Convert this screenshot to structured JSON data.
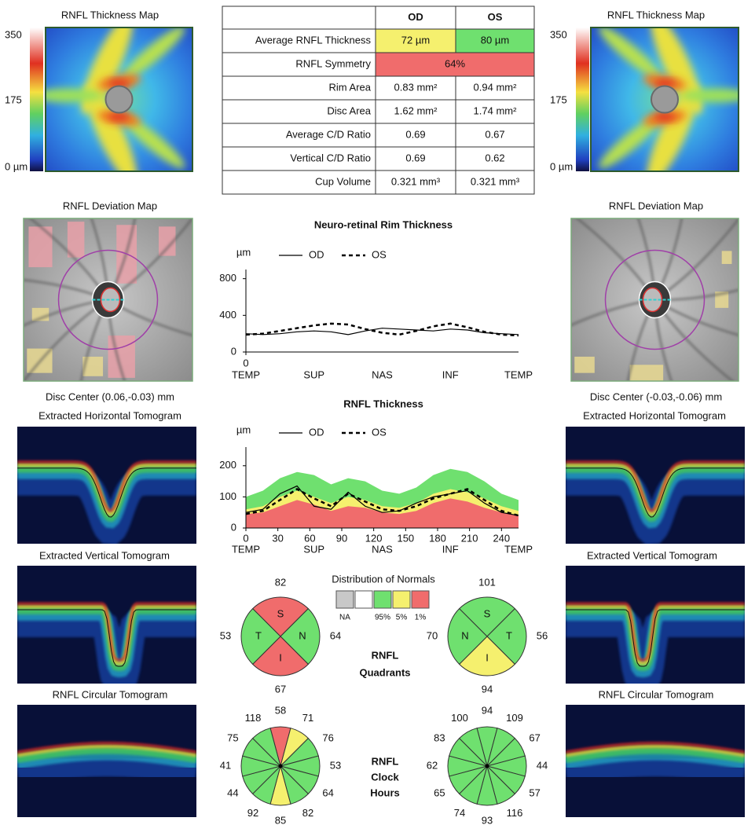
{
  "od": {
    "thickness_map": {
      "title": "RNFL Thickness Map",
      "scale_labels": [
        "350",
        "175",
        "0 µm"
      ]
    },
    "deviation_map": {
      "title": "RNFL Deviation Map",
      "disc_center": "Disc Center  (0.06,-0.03) mm"
    },
    "horizontal_tomogram": {
      "title": "Extracted Horizontal Tomogram"
    },
    "vertical_tomogram": {
      "title": "Extracted Vertical Tomogram"
    },
    "circular_tomogram": {
      "title": "RNFL Circular Tomogram"
    }
  },
  "os": {
    "thickness_map": {
      "title": "RNFL Thickness Map",
      "scale_labels": [
        "350",
        "175",
        "0 µm"
      ]
    },
    "deviation_map": {
      "title": "RNFL Deviation Map",
      "disc_center": "Disc Center  (-0.03,-0.06) mm"
    },
    "horizontal_tomogram": {
      "title": "Extracted Horizontal Tomogram"
    },
    "vertical_tomogram": {
      "title": "Extracted Vertical Tomogram"
    },
    "circular_tomogram": {
      "title": "RNFL Circular Tomogram"
    }
  },
  "table": {
    "columns": [
      "OD",
      "OS"
    ],
    "rows": [
      {
        "label": "Average RNFL Thickness",
        "cells": [
          "72 µm",
          "80 µm"
        ],
        "colors": [
          "#f5f06e",
          "#6fe06f"
        ]
      },
      {
        "label": "RNFL Symmetry",
        "cells": [
          "64%"
        ],
        "colors": [
          "#f06c6c"
        ]
      },
      {
        "label": "Rim Area",
        "cells": [
          "0.83 mm²",
          "0.94 mm²"
        ]
      },
      {
        "label": "Disc Area",
        "cells": [
          "1.62 mm²",
          "1.74 mm²"
        ]
      },
      {
        "label": "Average C/D Ratio",
        "cells": [
          "0.69",
          "0.67"
        ]
      },
      {
        "label": "Vertical C/D Ratio",
        "cells": [
          "0.69",
          "0.62"
        ]
      },
      {
        "label": "Cup Volume",
        "cells": [
          "0.321 mm³",
          "0.321 mm³"
        ]
      }
    ]
  },
  "chart_data": [
    {
      "type": "line",
      "title": "Neuro-retinal Rim Thickness",
      "y_unit": "µm",
      "x": [
        0,
        16,
        32,
        48,
        64,
        80,
        96,
        112,
        128,
        144,
        160,
        176,
        192,
        208,
        224,
        240,
        256
      ],
      "series": [
        {
          "name": "OD",
          "color": "#000000",
          "dash": "solid",
          "values": [
            200,
            190,
            200,
            220,
            230,
            220,
            190,
            230,
            260,
            250,
            240,
            230,
            250,
            240,
            210,
            200,
            190
          ]
        },
        {
          "name": "OS",
          "color": "#000000",
          "dash": "dashed",
          "values": [
            190,
            200,
            230,
            260,
            290,
            310,
            300,
            250,
            210,
            190,
            230,
            280,
            310,
            270,
            220,
            190,
            180
          ]
        }
      ],
      "xlim": [
        0,
        256
      ],
      "ylim": [
        0,
        900
      ],
      "yticks": [
        0,
        400,
        800
      ],
      "xticks": [
        0
      ],
      "region_ticks": [
        {
          "value": 0,
          "label": "TEMP"
        },
        {
          "value": 64,
          "label": "SUP"
        },
        {
          "value": 128,
          "label": "NAS"
        },
        {
          "value": 192,
          "label": "INF"
        },
        {
          "value": 256,
          "label": "TEMP"
        }
      ]
    },
    {
      "type": "line",
      "title": "RNFL Thickness",
      "y_unit": "µm",
      "x": [
        0,
        16,
        32,
        48,
        64,
        80,
        96,
        112,
        128,
        144,
        160,
        176,
        192,
        208,
        224,
        240,
        256
      ],
      "normal_bands": [
        {
          "color": "#6fe06f",
          "values": [
            100,
            120,
            160,
            180,
            170,
            140,
            160,
            150,
            120,
            110,
            130,
            170,
            190,
            180,
            150,
            110,
            90
          ]
        },
        {
          "color": "#f5f06e",
          "values": [
            60,
            70,
            100,
            120,
            100,
            80,
            100,
            90,
            70,
            65,
            80,
            110,
            125,
            115,
            95,
            70,
            55
          ]
        },
        {
          "color": "#f06c6c",
          "values": [
            45,
            50,
            70,
            90,
            75,
            55,
            70,
            65,
            50,
            45,
            55,
            80,
            95,
            85,
            65,
            50,
            40
          ]
        }
      ],
      "series": [
        {
          "name": "OD",
          "color": "#000000",
          "dash": "solid",
          "values": [
            50,
            60,
            110,
            135,
            70,
            60,
            115,
            70,
            50,
            55,
            80,
            100,
            110,
            120,
            80,
            50,
            40
          ]
        },
        {
          "name": "OS",
          "color": "#000000",
          "dash": "dashed",
          "values": [
            45,
            55,
            90,
            125,
            95,
            70,
            110,
            85,
            60,
            55,
            70,
            95,
            110,
            125,
            90,
            55,
            40
          ]
        }
      ],
      "xlim": [
        0,
        256
      ],
      "ylim": [
        0,
        260
      ],
      "yticks": [
        0,
        100,
        200
      ],
      "xticks": [
        0,
        30,
        60,
        90,
        120,
        150,
        180,
        210,
        240
      ],
      "region_ticks": [
        {
          "value": 0,
          "label": "TEMP"
        },
        {
          "value": 64,
          "label": "SUP"
        },
        {
          "value": 128,
          "label": "NAS"
        },
        {
          "value": 192,
          "label": "INF"
        },
        {
          "value": 256,
          "label": "TEMP"
        }
      ]
    }
  ],
  "normals_legend": {
    "title": "Distribution of Normals",
    "colors": [
      "#c8c8c8",
      "#ffffff",
      "#6fe06f",
      "#f5f06e",
      "#f06c6c"
    ],
    "labels": [
      "NA",
      "95%",
      "5%",
      "1%"
    ]
  },
  "quadrants": {
    "title": [
      "RNFL",
      "Quadrants"
    ],
    "od": {
      "sectors": [
        {
          "label": "S",
          "value": 82,
          "color": "#f06c6c"
        },
        {
          "label": "N",
          "value": 64,
          "color": "#6fe06f"
        },
        {
          "label": "I",
          "value": 67,
          "color": "#f06c6c"
        },
        {
          "label": "T",
          "value": 53,
          "color": "#6fe06f"
        }
      ]
    },
    "os": {
      "sectors": [
        {
          "label": "S",
          "value": 101,
          "color": "#6fe06f"
        },
        {
          "label": "T",
          "value": 56,
          "color": "#6fe06f"
        },
        {
          "label": "I",
          "value": 94,
          "color": "#f5f06e"
        },
        {
          "label": "N",
          "value": 70,
          "color": "#6fe06f"
        }
      ]
    }
  },
  "clock_hours": {
    "title": [
      "RNFL",
      "Clock",
      "Hours"
    ],
    "od": {
      "values": [
        58,
        71,
        76,
        53,
        64,
        82,
        85,
        92,
        44,
        41,
        75,
        118
      ],
      "colors": [
        "#f06c6c",
        "#f5f06e",
        "#6fe06f",
        "#6fe06f",
        "#6fe06f",
        "#6fe06f",
        "#f5f06e",
        "#6fe06f",
        "#6fe06f",
        "#6fe06f",
        "#6fe06f",
        "#6fe06f"
      ]
    },
    "os": {
      "values": [
        94,
        109,
        67,
        44,
        57,
        116,
        93,
        74,
        65,
        62,
        83,
        100
      ],
      "colors": [
        "#6fe06f",
        "#6fe06f",
        "#6fe06f",
        "#6fe06f",
        "#6fe06f",
        "#6fe06f",
        "#6fe06f",
        "#6fe06f",
        "#6fe06f",
        "#6fe06f",
        "#6fe06f",
        "#6fe06f"
      ]
    }
  }
}
